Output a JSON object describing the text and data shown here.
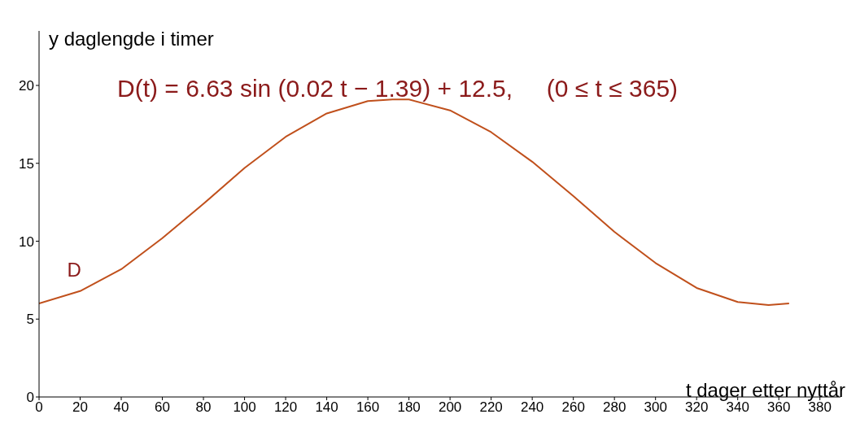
{
  "chart_data": {
    "type": "line",
    "title": "D(t) = 6.63 sin (0.02 t − 1.39) + 12.5,     (0 ≤ t ≤ 365)",
    "xlabel": "t dager etter nyttår",
    "ylabel": "y daglengde i timer",
    "x": [
      0,
      20,
      40,
      60,
      80,
      100,
      120,
      140,
      160,
      172,
      180,
      200,
      220,
      240,
      260,
      280,
      300,
      320,
      340,
      355,
      365
    ],
    "series": [
      {
        "name": "D",
        "color": "#c0501c",
        "values": [
          6.0,
          6.8,
          8.2,
          10.2,
          12.4,
          14.7,
          16.7,
          18.2,
          19.0,
          19.1,
          19.1,
          18.4,
          17.0,
          15.1,
          12.9,
          10.6,
          8.6,
          7.0,
          6.1,
          5.9,
          6.0
        ]
      }
    ],
    "xlim": [
      0,
      390
    ],
    "xticks": [
      0,
      20,
      40,
      60,
      80,
      100,
      120,
      140,
      160,
      180,
      200,
      220,
      240,
      260,
      280,
      300,
      320,
      340,
      360,
      380
    ],
    "ylim": [
      0,
      23.5
    ],
    "yticks": [
      0,
      5,
      10,
      15,
      20
    ],
    "grid": false,
    "legend": false,
    "marker": "none",
    "line_style": "solid"
  }
}
